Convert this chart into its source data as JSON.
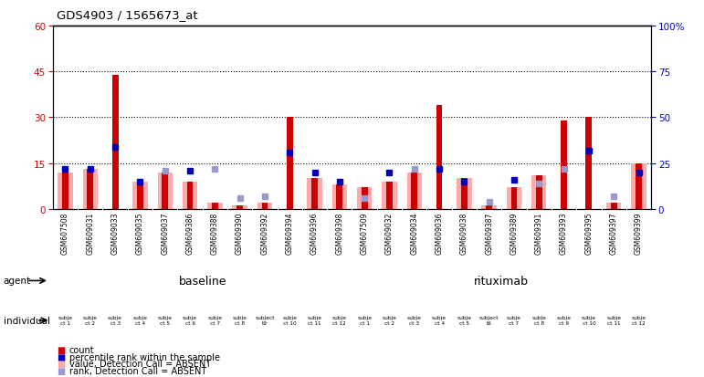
{
  "title": "GDS4903 / 1565673_at",
  "samples": [
    "GSM607508",
    "GSM609031",
    "GSM609033",
    "GSM609035",
    "GSM609037",
    "GSM609386",
    "GSM609388",
    "GSM609390",
    "GSM609392",
    "GSM609394",
    "GSM609396",
    "GSM609398",
    "GSM607509",
    "GSM609032",
    "GSM609034",
    "GSM609036",
    "GSM609038",
    "GSM609387",
    "GSM609389",
    "GSM609391",
    "GSM609393",
    "GSM609395",
    "GSM609397",
    "GSM609399"
  ],
  "red_bars": [
    12,
    13,
    44,
    9,
    12,
    9,
    2,
    1,
    2,
    30,
    10,
    8,
    7,
    9,
    12,
    34,
    10,
    1,
    7,
    11,
    29,
    30,
    2,
    15
  ],
  "pink_bars": [
    12,
    13,
    0,
    9,
    12,
    9,
    2,
    1,
    2,
    0,
    10,
    8,
    7,
    9,
    12,
    0,
    10,
    1,
    7,
    11,
    0,
    0,
    2,
    15
  ],
  "blue_y": [
    22,
    22,
    34,
    15,
    null,
    21,
    null,
    null,
    null,
    31,
    20,
    15,
    null,
    20,
    null,
    22,
    15,
    null,
    16,
    null,
    null,
    32,
    null,
    20
  ],
  "lblue_y": [
    null,
    null,
    null,
    null,
    21,
    null,
    22,
    6,
    7,
    null,
    null,
    null,
    6,
    null,
    22,
    null,
    null,
    4,
    null,
    14,
    22,
    null,
    7,
    null
  ],
  "ylim_left": [
    0,
    60
  ],
  "ylim_right": [
    0,
    100
  ],
  "yticks_left": [
    0,
    15,
    30,
    45,
    60
  ],
  "yticks_right": [
    0,
    25,
    50,
    75,
    100
  ],
  "ytick_labels_right": [
    "0",
    "25",
    "50",
    "75",
    "100%"
  ],
  "color_red": "#cc0000",
  "color_pink": "#ffaaaa",
  "color_blue": "#0000bb",
  "color_light_blue": "#9999cc",
  "color_green_baseline": "#88dd88",
  "color_green_rituximab": "#44cc44",
  "color_magenta": "#dd55dd",
  "color_gray_xarea": "#c8c8c8",
  "bg_color": "#ffffff",
  "individuals_baseline": [
    "subje\nct 1",
    "subje\nct 2",
    "subje\nct 3",
    "subje\nct 4",
    "subje\nct 5",
    "subje\nct 6",
    "subje\nct 7",
    "subje\nct 8",
    "subject\nt9",
    "subje\nct 10",
    "subje\nct 11",
    "subje\nct 12"
  ],
  "individuals_rituximab": [
    "subje\nct 1",
    "subje\nct 2",
    "subje\nct 3",
    "subje\nct 4",
    "subje\nct 5",
    "subject\nt6",
    "subje\nct 7",
    "subje\nct 8",
    "subje\nct 9",
    "subje\nct 10",
    "subje\nct 11",
    "subje\nct 12"
  ]
}
